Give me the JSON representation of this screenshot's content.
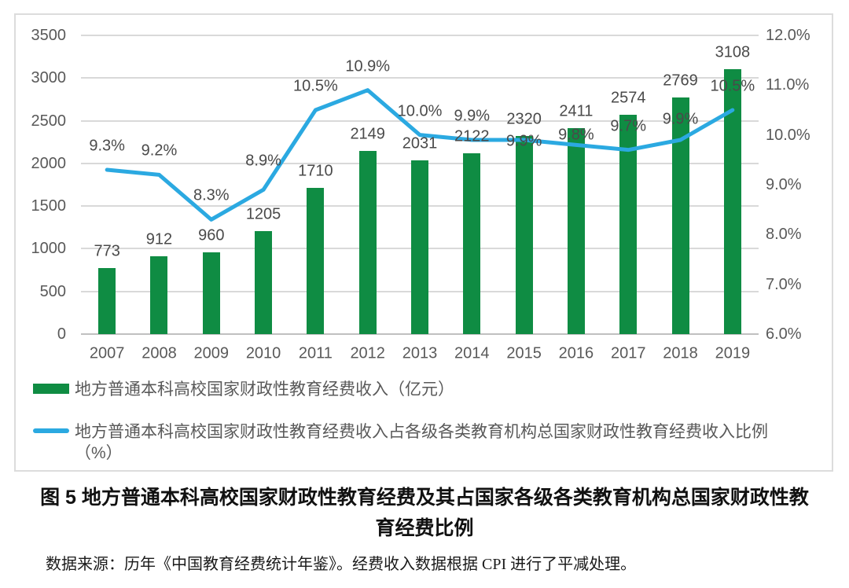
{
  "figure": {
    "caption": "图 5 地方普通本科高校国家财政性教育经费及其占国家各级各类教育机构总国家财政性教\n育经费比例",
    "source_note": "数据来源：历年《中国教育经费统计年鉴》。经费收入数据根据 CPI 进行了平减处理。"
  },
  "chart_data": {
    "type": "bar+line",
    "categories": [
      "2007",
      "2008",
      "2009",
      "2010",
      "2011",
      "2012",
      "2013",
      "2014",
      "2015",
      "2016",
      "2017",
      "2018",
      "2019"
    ],
    "series": [
      {
        "name": "地方普通本科高校国家财政性教育经费收入（亿元）",
        "chart": "bar",
        "axis": "left",
        "color": "#0F8C43",
        "values": [
          773,
          912,
          960,
          1205,
          1710,
          2149,
          2031,
          2122,
          2320,
          2411,
          2574,
          2769,
          3108
        ],
        "value_labels": [
          "773",
          "912",
          "960",
          "1205",
          "1710",
          "2149",
          "2031",
          "2122",
          "2320",
          "2411",
          "2574",
          "2769",
          "3108"
        ]
      },
      {
        "name": "地方普通本科高校国家财政性教育经费收入占各级各类教育机构总国家财政性教育经费收入比例（%）",
        "chart": "line",
        "axis": "right",
        "color": "#2BA9E1",
        "values": [
          9.3,
          9.2,
          8.3,
          8.9,
          10.5,
          10.9,
          10.0,
          9.9,
          9.9,
          9.8,
          9.7,
          9.9,
          10.5
        ],
        "value_labels": [
          "9.3%",
          "9.2%",
          "8.3%",
          "8.9%",
          "10.5%",
          "10.9%",
          "10.0%",
          "9.9%",
          "9.9%",
          "9.8%",
          "9.7%",
          "9.9%",
          "10.5%"
        ]
      }
    ],
    "left_axis": {
      "min": 0,
      "max": 3500,
      "step": 500,
      "tick_labels": [
        "3500",
        "3000",
        "2500",
        "2000",
        "1500",
        "1000",
        "500",
        "0"
      ]
    },
    "right_axis": {
      "min": 6.0,
      "max": 12.0,
      "step": 1.0,
      "tick_labels": [
        "12.0%",
        "11.0%",
        "10.0%",
        "9.0%",
        "8.0%",
        "7.0%",
        "6.0%"
      ]
    },
    "grid": true,
    "legend_position": "bottom",
    "legend": [
      {
        "swatch": "bar",
        "color": "#0F8C43",
        "label": "地方普通本科高校国家财政性教育经费收入（亿元）"
      },
      {
        "swatch": "line",
        "color": "#2BA9E1",
        "label": "地方普通本科高校国家财政性教育经费收入占各级各类教育机构总国家财政性教育经费收入比例\n（%）"
      }
    ],
    "colors": {
      "bar": "#0F8C43",
      "line": "#2BA9E1",
      "axis_text": "#595959",
      "data_label_text": "#4A4A4A",
      "gridline": "#D9D9D9"
    }
  }
}
